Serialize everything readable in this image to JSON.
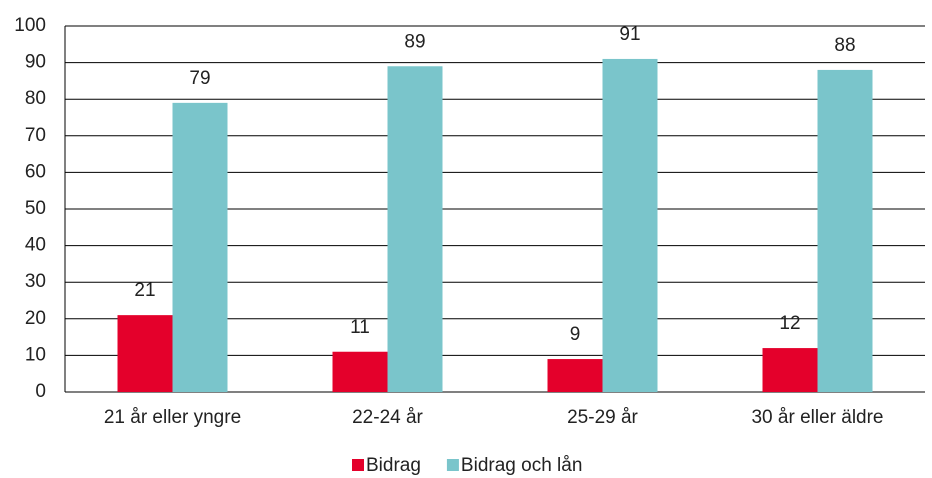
{
  "chart_data": {
    "type": "bar",
    "categories": [
      "21 år eller yngre",
      "22-24 år",
      "25-29 år",
      "30 år eller äldre"
    ],
    "series": [
      {
        "name": "Bidrag",
        "color": "#e4002b",
        "values": [
          21,
          11,
          9,
          12
        ]
      },
      {
        "name": "Bidrag och lån",
        "color": "#7ac5cb",
        "values": [
          79,
          89,
          91,
          88
        ]
      }
    ],
    "ylim": [
      0,
      100
    ],
    "yticks": [
      0,
      10,
      20,
      30,
      40,
      50,
      60,
      70,
      80,
      90,
      100
    ],
    "grid": true,
    "legend": "bottom"
  }
}
